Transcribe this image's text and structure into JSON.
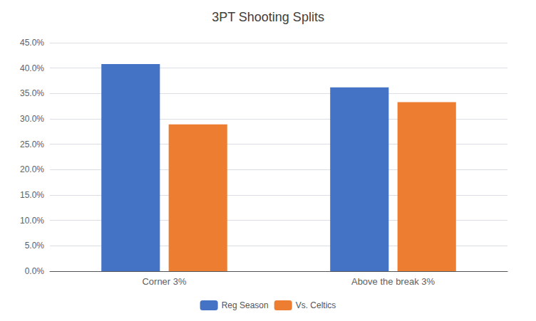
{
  "chart_data": {
    "type": "bar",
    "title": "3PT Shooting Splits",
    "categories": [
      "Corner 3%",
      "Above the break 3%"
    ],
    "series": [
      {
        "name": "Reg Season",
        "values": [
          0.408,
          0.362
        ],
        "color": "#4472C4"
      },
      {
        "name": "Vs. Celtics",
        "values": [
          0.289,
          0.333
        ],
        "color": "#ED7D31"
      }
    ],
    "ylim": [
      0,
      0.45
    ],
    "yticks": [
      {
        "value": 0.0,
        "label": "0.0%"
      },
      {
        "value": 0.05,
        "label": "5.0%"
      },
      {
        "value": 0.1,
        "label": "10.0%"
      },
      {
        "value": 0.15,
        "label": "15.0%"
      },
      {
        "value": 0.2,
        "label": "20.0%"
      },
      {
        "value": 0.25,
        "label": "25.0%"
      },
      {
        "value": 0.3,
        "label": "30.0%"
      },
      {
        "value": 0.35,
        "label": "35.0%"
      },
      {
        "value": 0.4,
        "label": "40.0%"
      },
      {
        "value": 0.45,
        "label": "45.0%"
      }
    ],
    "grid": true,
    "legend": "bottom"
  }
}
